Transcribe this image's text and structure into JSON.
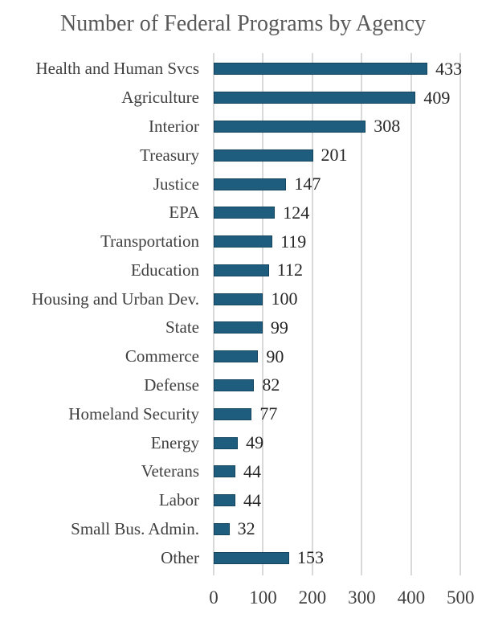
{
  "chart_data": {
    "type": "bar",
    "orientation": "horizontal",
    "title": "Number of Federal Programs by Agency",
    "categories": [
      "Health and Human Svcs",
      "Agriculture",
      "Interior",
      "Treasury",
      "Justice",
      "EPA",
      "Transportation",
      "Education",
      "Housing and Urban Dev.",
      "State",
      "Commerce",
      "Defense",
      "Homeland Security",
      "Energy",
      "Veterans",
      "Labor",
      "Small Bus. Admin.",
      "Other"
    ],
    "values": [
      433,
      409,
      308,
      201,
      147,
      124,
      119,
      112,
      100,
      99,
      90,
      82,
      77,
      49,
      44,
      44,
      32,
      153
    ],
    "data_labels": [
      "433",
      "409",
      "308",
      "201",
      "147",
      "124",
      "119",
      "112",
      "100",
      "99",
      "90",
      "82",
      "77",
      "49",
      "44",
      "44",
      "32",
      "153"
    ],
    "xlabel": "",
    "ylabel": "",
    "xlim": [
      0,
      500
    ],
    "x_ticks": [
      "0",
      "100",
      "200",
      "300",
      "400",
      "500"
    ],
    "grid": "vertical-gridlines-on",
    "legend": "none",
    "colors": {
      "bar_fill": "#1E5D7D",
      "bar_border": "#14455E",
      "gridline": "#D9D9D9",
      "title_text": "#595959",
      "category_text": "#3F3F3F",
      "value_text": "#262626",
      "tick_text": "#404040",
      "background": "#FFFFFF"
    }
  }
}
